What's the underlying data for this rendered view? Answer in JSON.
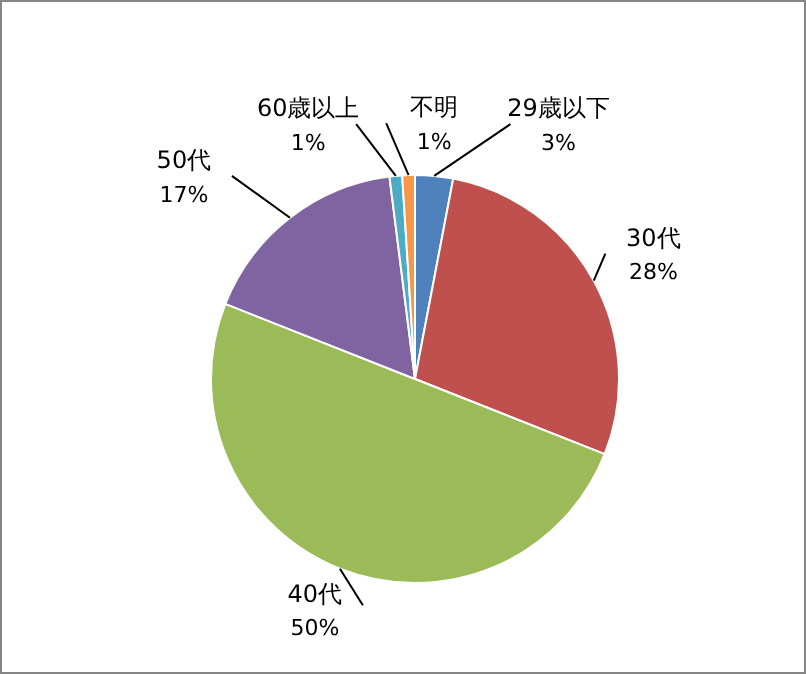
{
  "chart_data": {
    "type": "pie",
    "categories": [
      "29歳以下",
      "30代",
      "40代",
      "50代",
      "60歳以上",
      "不明"
    ],
    "values": [
      3,
      28,
      50,
      17,
      1,
      1
    ],
    "colors": [
      "#4f81bd",
      "#c0504d",
      "#9bbb59",
      "#8064a2",
      "#4bacc6",
      "#f79646"
    ],
    "value_labels": [
      "3%",
      "28%",
      "50%",
      "17%",
      "1%",
      "1%"
    ],
    "legend": false
  }
}
